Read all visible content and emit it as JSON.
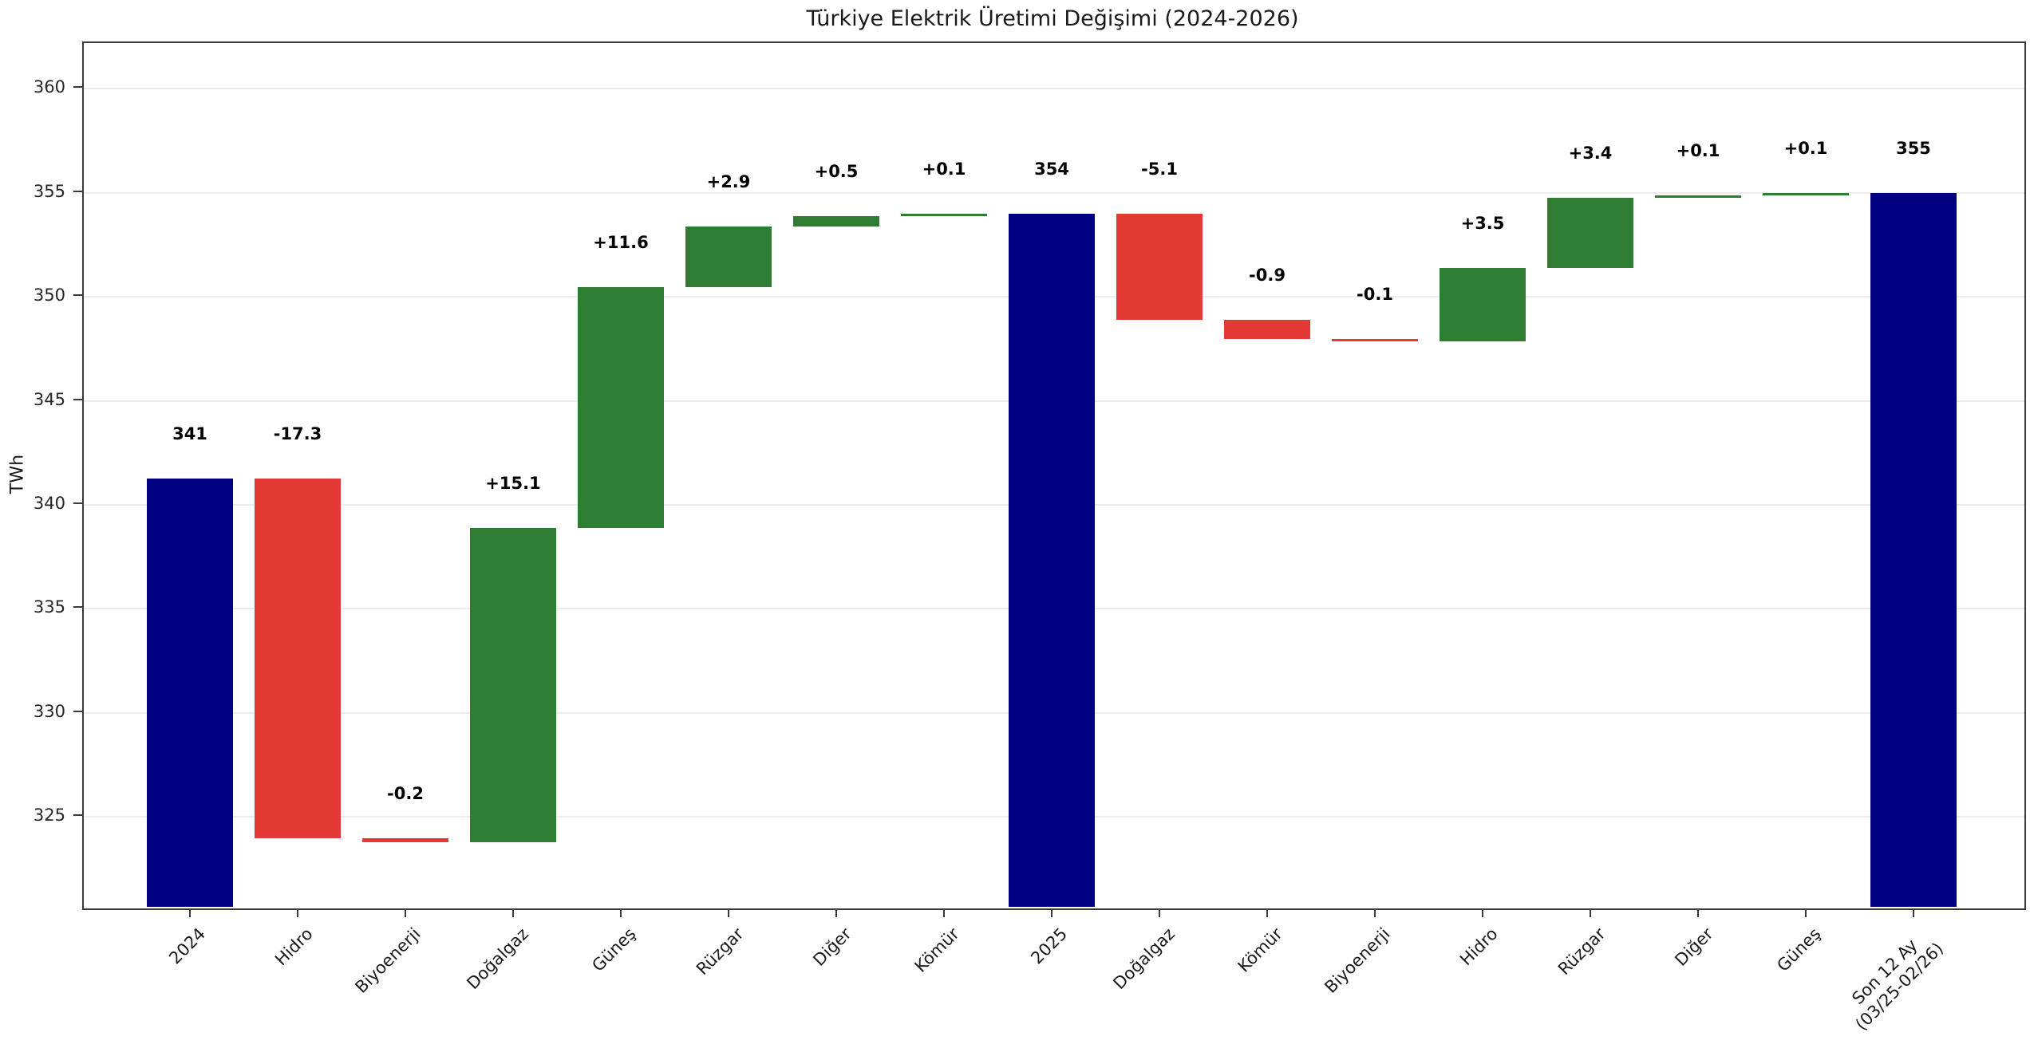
{
  "chart_data": {
    "type": "bar",
    "subtype": "waterfall",
    "title": "Türkiye Elektrik Üretimi Değişimi (2024-2026)",
    "ylabel": "TWh",
    "ylim": [
      320.6,
      362.2
    ],
    "yticks": [
      325,
      330,
      335,
      340,
      345,
      350,
      355,
      360
    ],
    "grid": "horizontal",
    "legend": "none",
    "colors": {
      "total": "#000080",
      "increase": "#2e7d32",
      "decrease": "#e53935",
      "gridline": "#ececec",
      "background": "#ffffff"
    },
    "bars": [
      {
        "category": "2024",
        "kind": "total",
        "start": 0,
        "end": 341.2,
        "label": "341"
      },
      {
        "category": "Hidro",
        "kind": "decrease",
        "start": 341.2,
        "end": 323.9,
        "label": "-17.3"
      },
      {
        "category": "Biyoenerji",
        "kind": "decrease",
        "start": 323.9,
        "end": 323.7,
        "label": "-0.2"
      },
      {
        "category": "Doğalgaz",
        "kind": "increase",
        "start": 323.7,
        "end": 338.8,
        "label": "+15.1"
      },
      {
        "category": "Güneş",
        "kind": "increase",
        "start": 338.8,
        "end": 350.4,
        "label": "+11.6"
      },
      {
        "category": "Rüzgar",
        "kind": "increase",
        "start": 350.4,
        "end": 353.3,
        "label": "+2.9"
      },
      {
        "category": "Diğer",
        "kind": "increase",
        "start": 353.3,
        "end": 353.8,
        "label": "+0.5"
      },
      {
        "category": "Kömür",
        "kind": "increase",
        "start": 353.8,
        "end": 353.9,
        "label": "+0.1"
      },
      {
        "category": "2025",
        "kind": "total",
        "start": 0,
        "end": 353.9,
        "label": "354"
      },
      {
        "category": "Doğalgaz",
        "kind": "decrease",
        "start": 353.9,
        "end": 348.8,
        "label": "-5.1"
      },
      {
        "category": "Kömür",
        "kind": "decrease",
        "start": 348.8,
        "end": 347.9,
        "label": "-0.9"
      },
      {
        "category": "Biyoenerji",
        "kind": "decrease",
        "start": 347.9,
        "end": 347.8,
        "label": "-0.1"
      },
      {
        "category": "Hidro",
        "kind": "increase",
        "start": 347.8,
        "end": 351.3,
        "label": "+3.5"
      },
      {
        "category": "Rüzgar",
        "kind": "increase",
        "start": 351.3,
        "end": 354.7,
        "label": "+3.4"
      },
      {
        "category": "Diğer",
        "kind": "increase",
        "start": 354.7,
        "end": 354.8,
        "label": "+0.1"
      },
      {
        "category": "Güneş",
        "kind": "increase",
        "start": 354.8,
        "end": 354.9,
        "label": "+0.1"
      },
      {
        "category": "Son 12 Ay\n(03/25-02/26)",
        "kind": "total",
        "start": 0,
        "end": 354.9,
        "label": "355"
      }
    ]
  }
}
